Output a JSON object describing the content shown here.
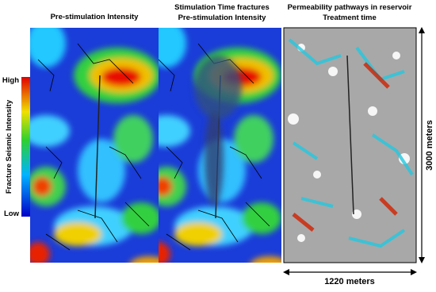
{
  "panels": [
    {
      "title": [
        "Pre-stimulation Intensity"
      ]
    },
    {
      "title": [
        "Stimulation Time fractures",
        "Pre-stimulation Intensity"
      ]
    },
    {
      "title": [
        "Permeability pathways in reservoir",
        "Treatment time"
      ]
    }
  ],
  "colorbar": {
    "label": "Fracture Seismic Intensity",
    "high": "High",
    "low": "Low"
  },
  "scale": {
    "height": "3000 meters",
    "width": "1220 meters"
  }
}
